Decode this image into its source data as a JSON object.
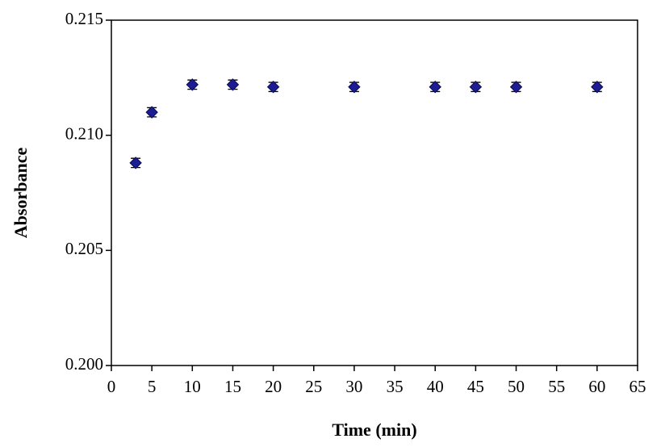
{
  "chart_data": {
    "type": "scatter",
    "xlabel": "Time (min)",
    "ylabel": "Absorbance",
    "x": [
      3,
      5,
      10,
      15,
      20,
      30,
      40,
      45,
      50,
      60
    ],
    "values": [
      0.2088,
      0.211,
      0.2122,
      0.2122,
      0.2121,
      0.2121,
      0.2121,
      0.2121,
      0.2121,
      0.2121
    ],
    "errors": [
      0.0002,
      0.0002,
      0.0002,
      0.0002,
      0.0002,
      0.0002,
      0.0002,
      0.0002,
      0.0002,
      0.0002
    ],
    "color": "#1c1c94",
    "xlim": [
      0,
      65
    ],
    "xticks": [
      0,
      5,
      10,
      15,
      20,
      25,
      30,
      35,
      40,
      45,
      50,
      55,
      60,
      65
    ],
    "ylim": [
      0.2,
      0.215
    ],
    "yticks": [
      {
        "value": 0.2,
        "label": "0.200"
      },
      0.205,
      {
        "value": 0.21,
        "label": "0.210"
      },
      0.215
    ]
  }
}
